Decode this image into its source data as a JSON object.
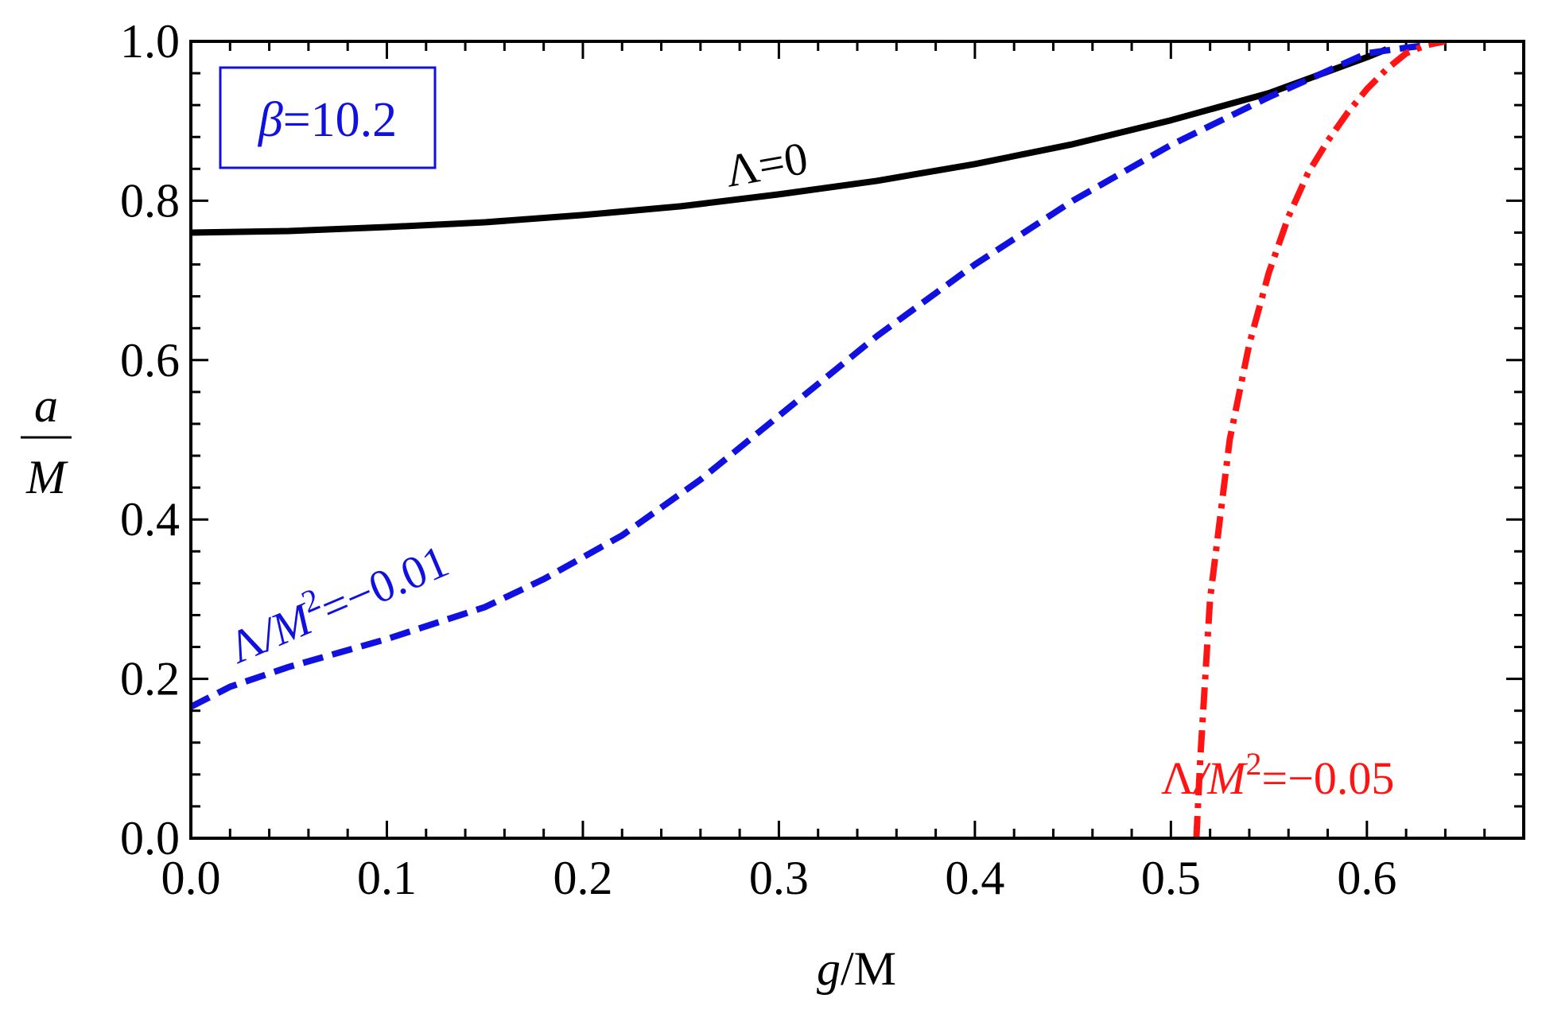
{
  "chart_data": {
    "type": "line",
    "title": "",
    "xlabel": {
      "symbol": "g",
      "unit": "/M"
    },
    "ylabel": {
      "numerator": "a",
      "denominator": "M"
    },
    "xlim": [
      0.0,
      0.68
    ],
    "ylim": [
      0.0,
      1.0
    ],
    "xticks": [
      0.0,
      0.1,
      0.2,
      0.3,
      0.4,
      0.5,
      0.6
    ],
    "xtick_labels": [
      "0.0",
      "0.1",
      "0.2",
      "0.3",
      "0.4",
      "0.5",
      "0.6"
    ],
    "yticks": [
      0.0,
      0.2,
      0.4,
      0.6,
      0.8,
      1.0
    ],
    "ytick_labels": [
      "0.0",
      "0.2",
      "0.4",
      "0.6",
      "0.8",
      "1.0"
    ],
    "annotation_box": {
      "symbol": "β",
      "text": "=10.2",
      "color": "#1010e0"
    },
    "series": [
      {
        "name": "Λ=0",
        "label": {
          "sym": "Λ",
          "mid": "",
          "sup": "",
          "rest": "=0"
        },
        "color": "#000000",
        "style": "solid",
        "x": [
          0.0,
          0.05,
          0.1,
          0.15,
          0.2,
          0.25,
          0.3,
          0.35,
          0.4,
          0.45,
          0.5,
          0.55,
          0.6,
          0.61
        ],
        "y": [
          0.76,
          0.762,
          0.767,
          0.773,
          0.782,
          0.793,
          0.808,
          0.825,
          0.846,
          0.871,
          0.901,
          0.935,
          0.98,
          0.99
        ]
      },
      {
        "name": "Λ/M²=−0.01",
        "label": {
          "sym": "Λ",
          "mid": "/M",
          "sup": "2",
          "rest": "=−0.01"
        },
        "color": "#1010e0",
        "style": "dashed",
        "x": [
          0.0,
          0.02,
          0.05,
          0.1,
          0.15,
          0.18,
          0.22,
          0.26,
          0.3,
          0.35,
          0.4,
          0.45,
          0.5,
          0.55,
          0.6,
          0.62,
          0.63
        ],
        "y": [
          0.165,
          0.19,
          0.215,
          0.25,
          0.29,
          0.325,
          0.38,
          0.45,
          0.53,
          0.63,
          0.72,
          0.8,
          0.87,
          0.93,
          0.985,
          0.992,
          0.995
        ]
      },
      {
        "name": "Λ/M²=−0.05",
        "label": {
          "sym": "Λ",
          "mid": "/M",
          "sup": "2",
          "rest": "=−0.05"
        },
        "color": "#ff1414",
        "style": "dashdot",
        "x": [
          0.513,
          0.515,
          0.52,
          0.53,
          0.54,
          0.55,
          0.56,
          0.57,
          0.58,
          0.59,
          0.6,
          0.61,
          0.62,
          0.63,
          0.64
        ],
        "y": [
          0.0,
          0.1,
          0.3,
          0.5,
          0.62,
          0.71,
          0.78,
          0.835,
          0.875,
          0.91,
          0.94,
          0.965,
          0.985,
          0.995,
          1.0
        ]
      }
    ]
  }
}
